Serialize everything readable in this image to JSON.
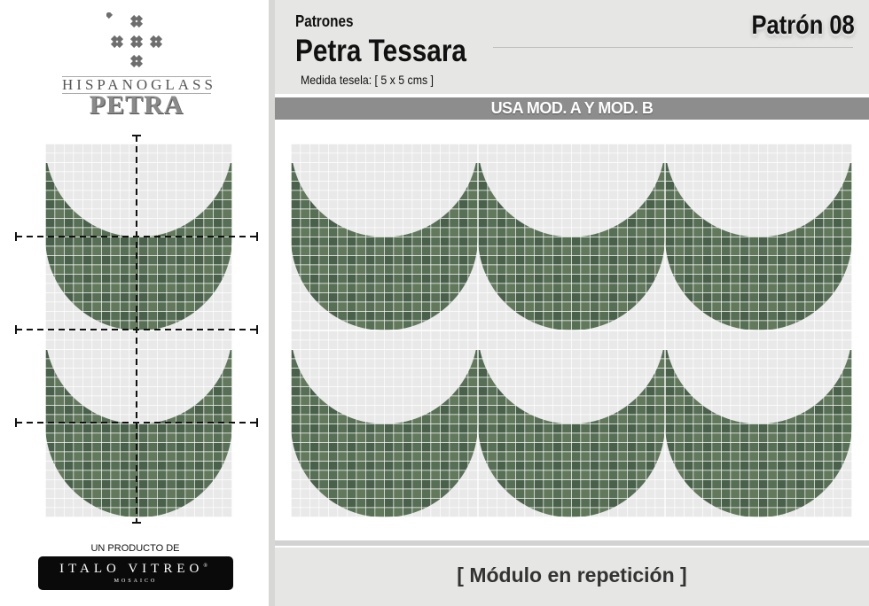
{
  "brand": {
    "logo_line1": "HISPANOGLASS",
    "logo_line2": "PETRA",
    "maker_label": "UN PRODUCTO DE",
    "maker_name": "ITALO VITREO",
    "maker_sub": "MOSAICO",
    "maker_mark": "®"
  },
  "header": {
    "category": "Patrones",
    "title": "Petra Tessara",
    "tile_size": "Medida tesela: [ 5 x 5 cms ]",
    "pattern_number": "Patrón 08"
  },
  "banner": {
    "text": "USA MOD. A Y MOD. B"
  },
  "footer": {
    "text": "[ Módulo en repetición ]"
  },
  "colors": {
    "green": "#4f6a4f",
    "light": "#e8e9e8",
    "bar": "#8d8d8d",
    "panel": "#e6e6e4"
  },
  "icons": [
    "diamond-cluster-logo-icon"
  ]
}
